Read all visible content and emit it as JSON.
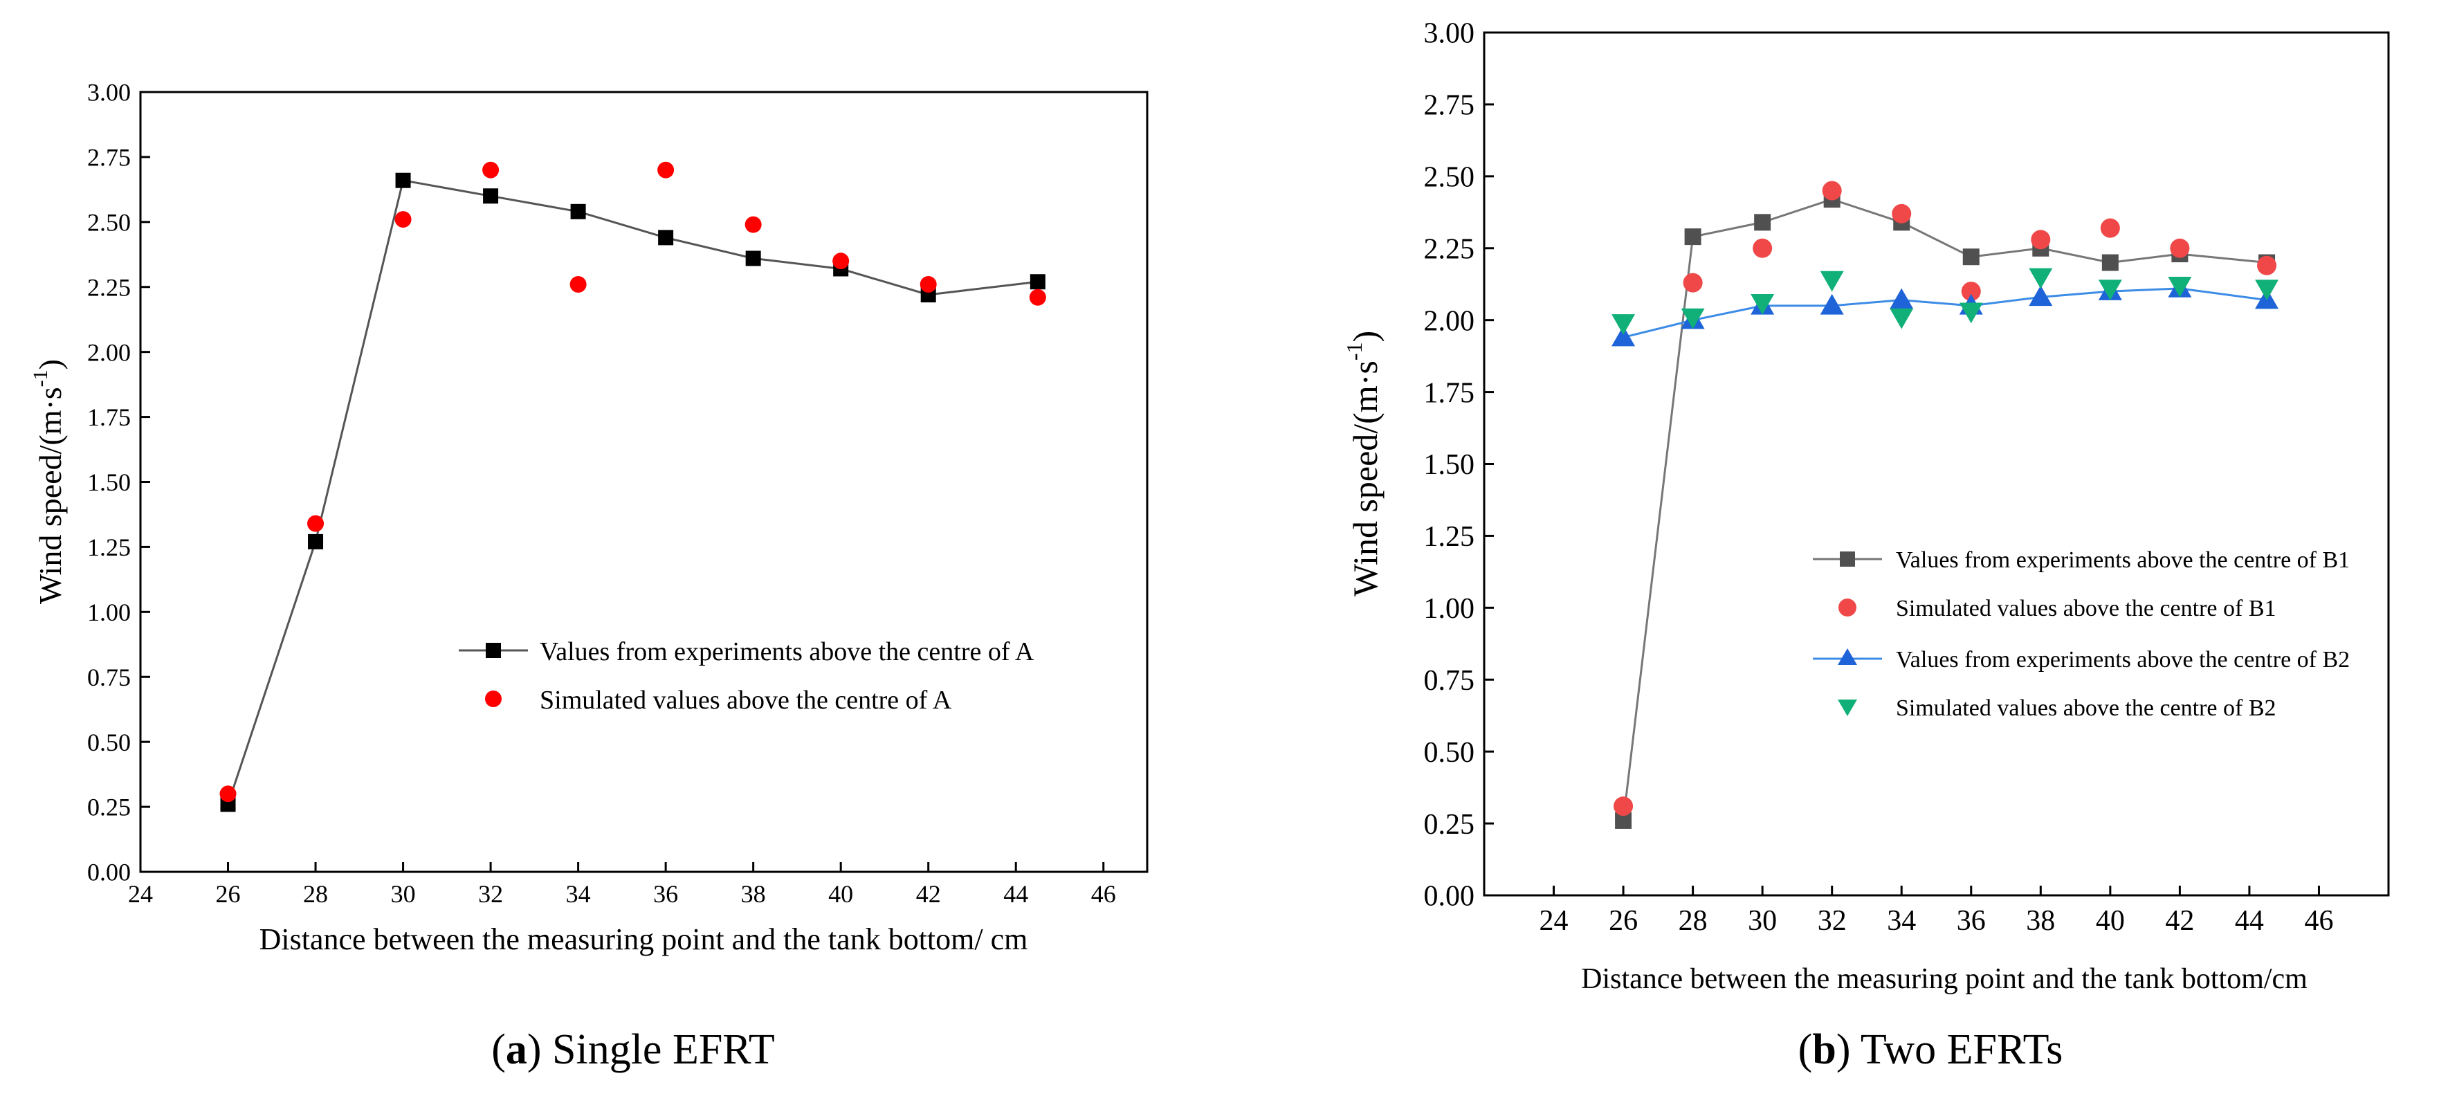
{
  "chart_data": [
    {
      "type": "line",
      "panel_label": "a",
      "caption": "Single EFRT",
      "title": "",
      "xlabel": "Distance between the measuring point and the tank bottom/ cm",
      "ylabel": "Wind speed/(m·s",
      "ylabel_sup": "-1",
      "ylabel_close": ")",
      "xlim": [
        24,
        47
      ],
      "ylim": [
        0,
        3.0
      ],
      "x_ticks": [
        "24",
        "26",
        "28",
        "30",
        "32",
        "34",
        "36",
        "38",
        "40",
        "42",
        "44",
        "46"
      ],
      "y_ticks": [
        "0.00",
        "0.25",
        "0.50",
        "0.75",
        "1.00",
        "1.25",
        "1.50",
        "1.75",
        "2.00",
        "2.25",
        "2.50",
        "2.75",
        "3.00"
      ],
      "legend_position": "center-right",
      "series": [
        {
          "name": "Values from experiments above the centre of A",
          "marker": "square",
          "color": "#000000",
          "line": true,
          "line_color": "#555555",
          "x": [
            26,
            28,
            30,
            32,
            34,
            36,
            38,
            40,
            42,
            44.5
          ],
          "values": [
            0.26,
            1.27,
            2.66,
            2.6,
            2.54,
            2.44,
            2.36,
            2.32,
            2.22,
            2.27
          ]
        },
        {
          "name": "Simulated values above the centre of A",
          "marker": "circle",
          "color": "#ff0000",
          "line": false,
          "x": [
            26,
            28,
            30,
            32,
            34,
            36,
            38,
            40,
            42,
            44.5
          ],
          "values": [
            0.3,
            1.34,
            2.51,
            2.7,
            2.26,
            2.7,
            2.49,
            2.35,
            2.26,
            2.21
          ]
        }
      ]
    },
    {
      "type": "line",
      "panel_label": "b",
      "caption": "Two EFRTs",
      "title": "",
      "xlabel": "Distance between the measuring point and the tank bottom/cm",
      "ylabel": "Wind speed/(m·s",
      "ylabel_sup": "-1",
      "ylabel_close": ")",
      "xlim": [
        22,
        48
      ],
      "ylim": [
        0,
        3.0
      ],
      "x_ticks": [
        "24",
        "26",
        "28",
        "30",
        "32",
        "34",
        "36",
        "38",
        "40",
        "42",
        "44",
        "46"
      ],
      "y_ticks": [
        "0.00",
        "0.25",
        "0.50",
        "0.75",
        "1.00",
        "1.25",
        "1.50",
        "1.75",
        "2.00",
        "2.25",
        "2.50",
        "2.75",
        "3.00"
      ],
      "legend_position": "center-right",
      "series": [
        {
          "name": "Values from experiments above the centre of B1",
          "marker": "square",
          "color": "#505050",
          "line": true,
          "line_color": "#777777",
          "x": [
            26,
            28,
            30,
            32,
            34,
            36,
            38,
            40,
            42,
            44.5
          ],
          "values": [
            0.26,
            2.29,
            2.34,
            2.42,
            2.34,
            2.22,
            2.25,
            2.2,
            2.23,
            2.2
          ]
        },
        {
          "name": "Simulated values above the centre of B1",
          "marker": "circle",
          "color": "#f04848",
          "line": false,
          "x": [
            26,
            28,
            30,
            32,
            34,
            36,
            38,
            40,
            42,
            44.5
          ],
          "values": [
            0.31,
            2.13,
            2.25,
            2.45,
            2.37,
            2.1,
            2.28,
            2.32,
            2.25,
            2.19
          ]
        },
        {
          "name": "Values from experiments above the centre of B2",
          "marker": "triangle-up",
          "color": "#1e64d8",
          "line": true,
          "line_color": "#3c8ce6",
          "x": [
            26,
            28,
            30,
            32,
            34,
            36,
            38,
            40,
            42,
            44.5
          ],
          "values": [
            1.94,
            2.0,
            2.05,
            2.05,
            2.07,
            2.05,
            2.08,
            2.1,
            2.11,
            2.07
          ]
        },
        {
          "name": "Simulated values above the centre of B2",
          "marker": "triangle-down",
          "color": "#10b078",
          "line": false,
          "x": [
            26,
            28,
            30,
            32,
            34,
            36,
            38,
            40,
            42,
            44.5
          ],
          "values": [
            1.99,
            2.01,
            2.06,
            2.14,
            2.01,
            2.03,
            2.15,
            2.11,
            2.12,
            2.11
          ]
        }
      ]
    }
  ]
}
